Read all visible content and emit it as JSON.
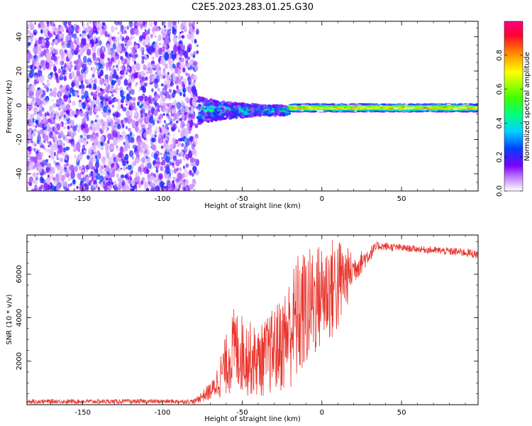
{
  "title": "C2E5.2023.283.01.25.G30",
  "chart_data": [
    {
      "type": "heatmap",
      "xlabel": "Height of straight line (km)",
      "ylabel": "Frequency (Hz)",
      "xlim": [
        -185,
        98
      ],
      "ylim": [
        -50,
        49
      ],
      "x_ticks": [
        -150,
        -100,
        -50,
        0,
        50
      ],
      "y_ticks": [
        -40,
        -20,
        0,
        20,
        40
      ],
      "colorbar": {
        "label": "Normalized spectral amplitude",
        "range": [
          0,
          1
        ],
        "ticks": [
          "0.0",
          "0.2",
          "0.4",
          "0.6",
          "0.8"
        ]
      },
      "regions": [
        {
          "x_from": -185,
          "x_to": -78,
          "description": "noise",
          "amplitude": 0.1
        },
        {
          "x_from": -78,
          "x_to": -20,
          "center_freq": -3,
          "amplitude": 0.45
        },
        {
          "x_from": -20,
          "x_to": 98,
          "center_freq": -1.5,
          "amplitude": 0.9
        }
      ]
    },
    {
      "type": "line",
      "xlabel": "Height of straight line (km)",
      "ylabel": "SNR (10 * v/v)",
      "xlim": [
        -185,
        98
      ],
      "ylim": [
        0,
        7800
      ],
      "x_ticks": [
        -150,
        -100,
        -50,
        0,
        50
      ],
      "y_ticks": [
        2000,
        4000,
        6000
      ],
      "color": "#e8342c",
      "envelope": [
        {
          "x": -185,
          "low": 50,
          "high": 250
        },
        {
          "x": -80,
          "low": 50,
          "high": 250
        },
        {
          "x": -68,
          "low": 200,
          "high": 1200
        },
        {
          "x": -55,
          "low": 500,
          "high": 4500
        },
        {
          "x": -40,
          "low": 300,
          "high": 3500
        },
        {
          "x": -25,
          "low": 500,
          "high": 5000
        },
        {
          "x": -15,
          "low": 800,
          "high": 7000
        },
        {
          "x": 0,
          "low": 2500,
          "high": 7500
        },
        {
          "x": 10,
          "low": 3000,
          "high": 7800
        },
        {
          "x": 20,
          "low": 5500,
          "high": 6900
        },
        {
          "x": 35,
          "low": 7100,
          "high": 7500
        },
        {
          "x": 60,
          "low": 7000,
          "high": 7300
        },
        {
          "x": 90,
          "low": 6800,
          "high": 7200
        },
        {
          "x": 98,
          "low": 6700,
          "high": 7100
        }
      ]
    }
  ]
}
